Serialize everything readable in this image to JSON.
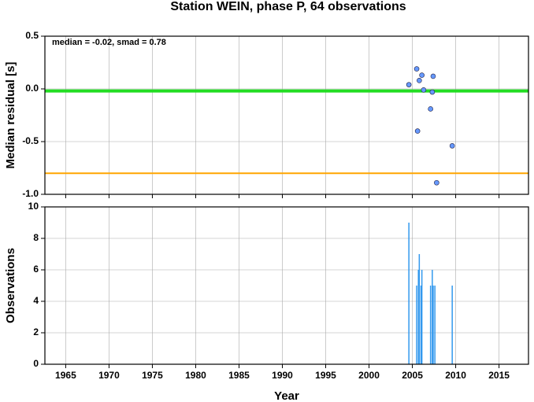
{
  "title": "Station WEIN, phase P, 64 observations",
  "chart_data": [
    {
      "type": "scatter",
      "ylabel": "Median residual [s]",
      "annotation": "median = -0.02, smad = 0.78",
      "x": [
        2004.6,
        2005.5,
        2005.8,
        2006.1,
        2006.3,
        2007.4,
        2007.3,
        2007.1,
        2005.6,
        2009.6,
        2007.8
      ],
      "values": [
        0.04,
        0.19,
        0.08,
        0.13,
        -0.01,
        0.12,
        -0.03,
        -0.19,
        -0.4,
        -0.54,
        -0.89
      ],
      "color": "#6699ff",
      "hlines": [
        {
          "value": -0.02,
          "color": "#22dd22"
        },
        {
          "value": -0.8,
          "color": "#ffa500"
        }
      ],
      "xlim": [
        1962.6,
        2018.4
      ],
      "xticks": [
        1965,
        1970,
        1975,
        1980,
        1985,
        1990,
        1995,
        2000,
        2005,
        2010,
        2015
      ],
      "ylim": [
        -1,
        0.5
      ],
      "yticks": [
        {
          "value": -1,
          "label": "-1.0"
        },
        -0.5,
        {
          "value": 0,
          "label": "0.0"
        },
        0.5
      ],
      "grid": true
    },
    {
      "type": "bar",
      "ylabel": "Observations",
      "xlabel": "Year",
      "x": [
        2004.6,
        2005.5,
        2005.7,
        2005.8,
        2006.0,
        2006.1,
        2007.1,
        2007.3,
        2007.4,
        2007.6,
        2009.6
      ],
      "values": [
        9,
        5,
        6,
        7,
        5,
        6,
        5,
        6,
        5,
        5,
        5
      ],
      "color": "#3399ee",
      "xlim": [
        1962.6,
        2018.4
      ],
      "xticks": [
        1965,
        1970,
        1975,
        1980,
        1985,
        1990,
        1995,
        2000,
        2005,
        2010,
        2015
      ],
      "ylim": [
        0,
        10
      ],
      "yticks": [
        0,
        2,
        4,
        6,
        8,
        10
      ],
      "grid": true
    }
  ]
}
